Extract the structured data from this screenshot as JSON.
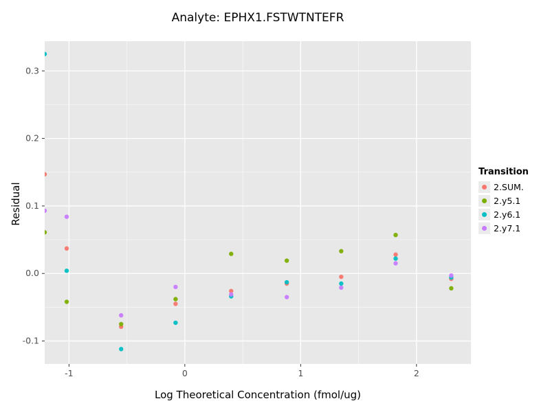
{
  "chart_data": {
    "type": "scatter",
    "title": "Analyte: EPHX1.FSTWTNTEFR",
    "xlabel": "Log Theoretical Concentration (fmol/ug)",
    "ylabel": "Residual",
    "xlim": [
      -1.21,
      2.47
    ],
    "ylim": [
      -0.134,
      0.344
    ],
    "x_ticks": [
      -1,
      0,
      1,
      2
    ],
    "x_tick_labels": [
      "-1",
      "0",
      "1",
      "2"
    ],
    "x_minor": [
      -0.5,
      0.5,
      1.5
    ],
    "y_ticks": [
      -0.1,
      0.0,
      0.1,
      0.2,
      0.3
    ],
    "y_tick_labels": [
      "-0.1",
      "0.0",
      "0.1",
      "0.2",
      "0.3"
    ],
    "y_minor": [
      -0.05,
      0.05,
      0.15,
      0.25
    ],
    "panel_color": "#e8e8e8",
    "grid_color": "#ffffff",
    "tick_label_color": "#4d4d4d",
    "tick_mark_color": "#333333",
    "legend_title": "Transition",
    "series": [
      {
        "name": "2.SUM.",
        "color": "#F8766D",
        "points": [
          [
            -1.21,
            0.147
          ],
          [
            -1.02,
            0.037
          ],
          [
            -0.55,
            -0.079
          ],
          [
            -0.08,
            -0.045
          ],
          [
            0.4,
            -0.026
          ],
          [
            0.88,
            -0.015
          ],
          [
            1.35,
            -0.005
          ],
          [
            1.82,
            0.028
          ],
          [
            2.3,
            -0.008
          ]
        ]
      },
      {
        "name": "2.y5.1",
        "color": "#7CAE00",
        "points": [
          [
            -1.21,
            0.061
          ],
          [
            -1.02,
            -0.042
          ],
          [
            -0.55,
            -0.075
          ],
          [
            -0.08,
            -0.038
          ],
          [
            0.4,
            0.029
          ],
          [
            0.88,
            0.019
          ],
          [
            1.35,
            0.033
          ],
          [
            1.82,
            0.057
          ],
          [
            2.3,
            -0.022
          ]
        ]
      },
      {
        "name": "2.y6.1",
        "color": "#00BFC4",
        "points": [
          [
            -1.21,
            0.325
          ],
          [
            -1.02,
            0.004
          ],
          [
            -0.55,
            -0.112
          ],
          [
            -0.08,
            -0.073
          ],
          [
            0.4,
            -0.034
          ],
          [
            0.88,
            -0.013
          ],
          [
            1.35,
            -0.015
          ],
          [
            1.82,
            0.022
          ],
          [
            2.3,
            -0.006
          ]
        ]
      },
      {
        "name": "2.y7.1",
        "color": "#C77CFF",
        "points": [
          [
            -1.21,
            0.093
          ],
          [
            -1.02,
            0.084
          ],
          [
            -0.55,
            -0.062
          ],
          [
            -0.08,
            -0.02
          ],
          [
            0.4,
            -0.031
          ],
          [
            0.88,
            -0.035
          ],
          [
            1.35,
            -0.021
          ],
          [
            1.82,
            0.015
          ],
          [
            2.3,
            -0.003
          ]
        ]
      }
    ]
  }
}
